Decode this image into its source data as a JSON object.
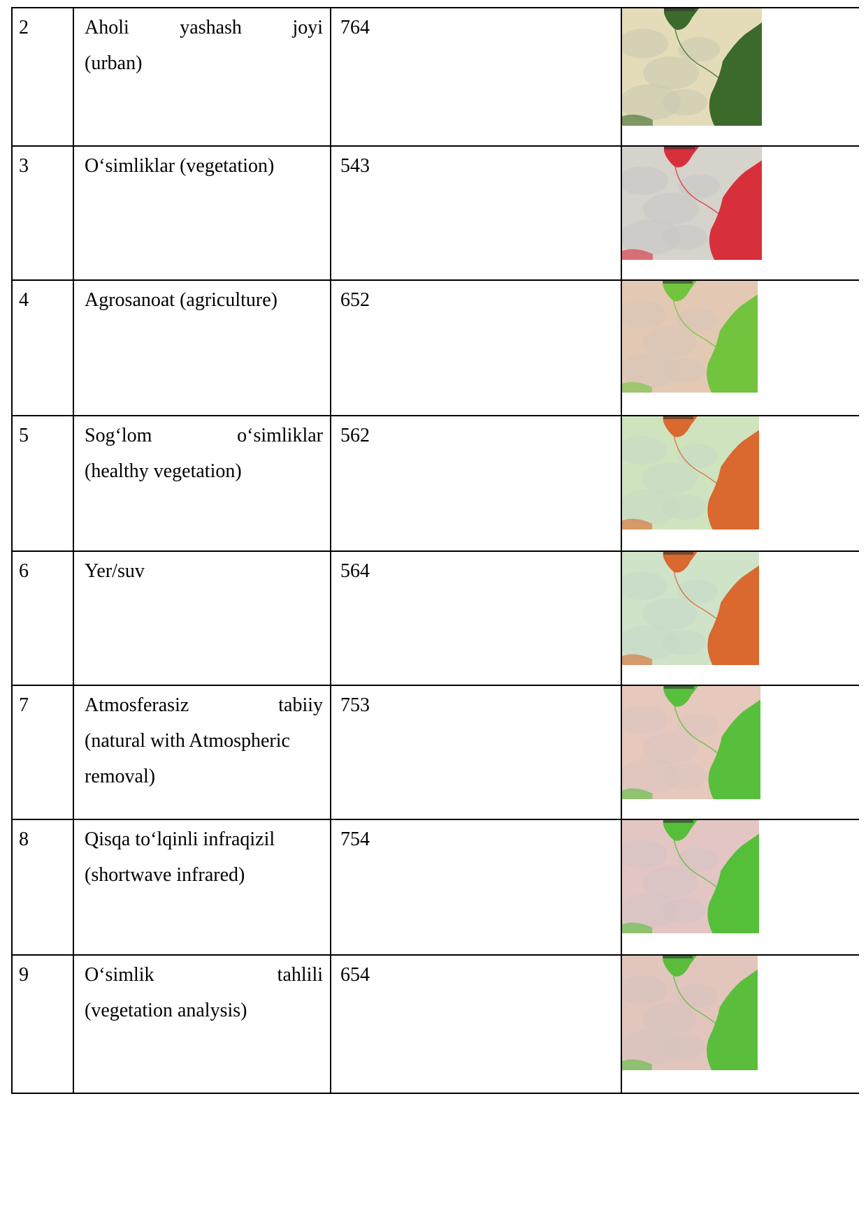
{
  "table": {
    "rows": [
      {
        "num": "2",
        "name_line1_words": [
          "Aholi",
          "yashash",
          "joyi"
        ],
        "name_line2": "(urban)",
        "code": "764",
        "image": "urban-composite-image",
        "colors": {
          "bg": "#e4dcb8",
          "veg": "#3b6a2b",
          "pale": "#c9c9b3"
        }
      },
      {
        "num": "3",
        "name_line1_words": [
          "O‘simliklar (vegetation)"
        ],
        "name_line2": "",
        "code": "543",
        "image": "vegetation-composite-image",
        "colors": {
          "bg": "#d6d2cc",
          "veg": "#d8303a",
          "pale": "#c9c7c4"
        }
      },
      {
        "num": "4",
        "name_line1_words": [
          "Agrosanoat (agriculture)"
        ],
        "name_line2": "",
        "code": "652",
        "image": "agriculture-composite-image",
        "colors": {
          "bg": "#e3c9b3",
          "veg": "#72c43f",
          "pale": "#d7c4b8"
        }
      },
      {
        "num": "5",
        "name_line1_words": [
          "Sog‘lom",
          "o‘simliklar"
        ],
        "name_line2": "(healthy vegetation)",
        "code": "562",
        "image": "healthy-vegetation-composite-image",
        "colors": {
          "bg": "#cfe3bf",
          "veg": "#d9692f",
          "pale": "#c9d9c4"
        }
      },
      {
        "num": "6",
        "name_line1_words": [
          "Yer/suv"
        ],
        "name_line2": "",
        "code": "564",
        "image": "land-water-composite-image",
        "colors": {
          "bg": "#cfe3c8",
          "veg": "#d9692f",
          "pale": "#c6d8c8"
        }
      },
      {
        "num": "7",
        "name_line1_words": [
          "Atmosferasiz",
          "tabiiy"
        ],
        "name_line2": "(natural with Atmospheric",
        "name_line3": "removal)",
        "code": "753",
        "image": "atmospheric-removal-composite-image",
        "colors": {
          "bg": "#e6c8bc",
          "veg": "#58bf3c",
          "pale": "#d9c4c0"
        }
      },
      {
        "num": "8",
        "name_line1_words": [
          "Qisqa to‘lqinli infraqizil"
        ],
        "name_line2": "(shortwave infrared)",
        "code": "754",
        "image": "shortwave-infrared-composite-image",
        "colors": {
          "bg": "#e3c6c4",
          "veg": "#55bf3a",
          "pale": "#d6c2c4"
        }
      },
      {
        "num": "9",
        "name_line1_words": [
          "O‘simlik",
          "tahlili"
        ],
        "name_line2": "(vegetation analysis)",
        "code": "654",
        "image": "vegetation-analysis-composite-image",
        "colors": {
          "bg": "#e2c5bd",
          "veg": "#5bbd3c",
          "pale": "#d5c3c0"
        }
      }
    ]
  }
}
